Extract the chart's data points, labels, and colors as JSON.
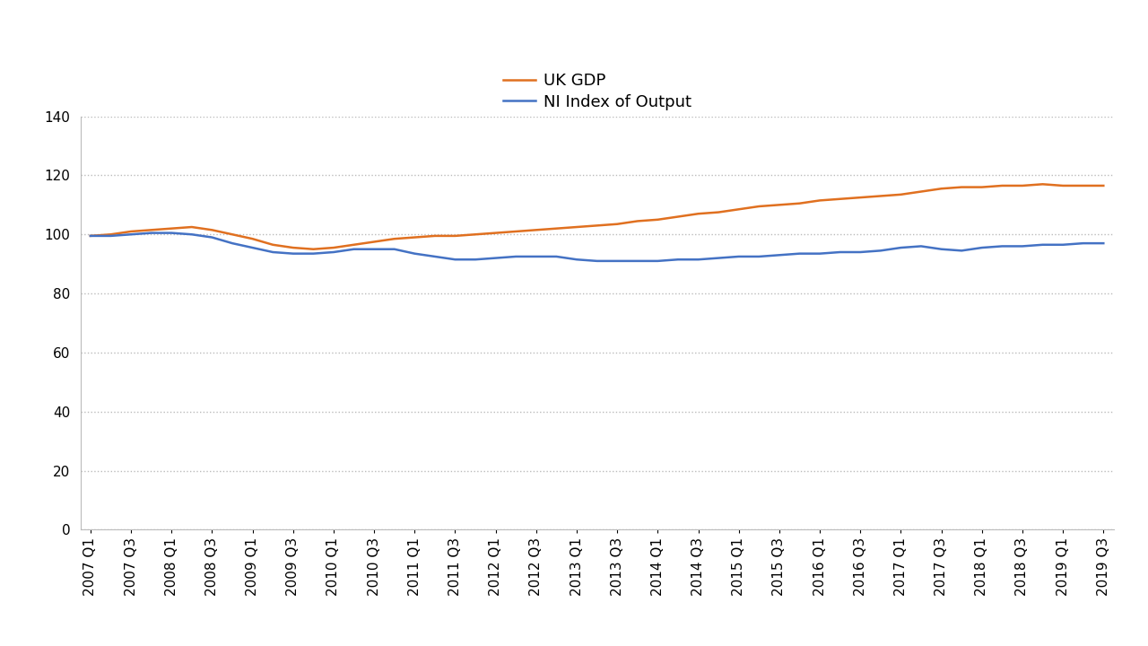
{
  "uk_gdp": [
    99.5,
    100.0,
    101.0,
    101.5,
    102.0,
    102.5,
    101.5,
    100.0,
    98.5,
    96.5,
    95.5,
    95.0,
    95.5,
    96.5,
    97.5,
    98.5,
    99.0,
    99.5,
    99.5,
    100.0,
    100.5,
    101.0,
    101.5,
    102.0,
    102.5,
    103.0,
    103.5,
    104.5,
    105.0,
    106.0,
    107.0,
    107.5,
    108.5,
    109.5,
    110.0,
    110.5,
    111.5,
    112.0,
    112.5,
    113.0,
    113.5,
    114.5,
    115.5,
    116.0,
    116.0,
    116.5,
    116.5,
    117.0,
    116.5,
    116.5,
    116.5
  ],
  "ni_output": [
    99.5,
    99.5,
    100.0,
    100.5,
    100.5,
    100.0,
    99.0,
    97.0,
    95.5,
    94.0,
    93.5,
    93.5,
    94.0,
    95.0,
    95.0,
    95.0,
    93.5,
    92.5,
    91.5,
    91.5,
    92.0,
    92.5,
    92.5,
    92.5,
    91.5,
    91.0,
    91.0,
    91.0,
    91.0,
    91.5,
    91.5,
    92.0,
    92.5,
    92.5,
    93.0,
    93.5,
    93.5,
    94.0,
    94.0,
    94.5,
    95.5,
    96.0,
    95.0,
    94.5,
    95.5,
    96.0,
    96.0,
    96.5,
    96.5,
    97.0,
    97.0
  ],
  "uk_gdp_color": "#E07020",
  "ni_output_color": "#4472C4",
  "uk_gdp_label": "UK GDP",
  "ni_output_label": "NI Index of Output",
  "ylim": [
    0,
    140
  ],
  "yticks": [
    0,
    20,
    40,
    60,
    80,
    100,
    120,
    140
  ],
  "background_color": "#FFFFFF",
  "grid_color": "#BBBBBB",
  "spine_color": "#BBBBBB",
  "line_width": 1.8,
  "legend_fontsize": 13,
  "tick_fontsize": 11
}
